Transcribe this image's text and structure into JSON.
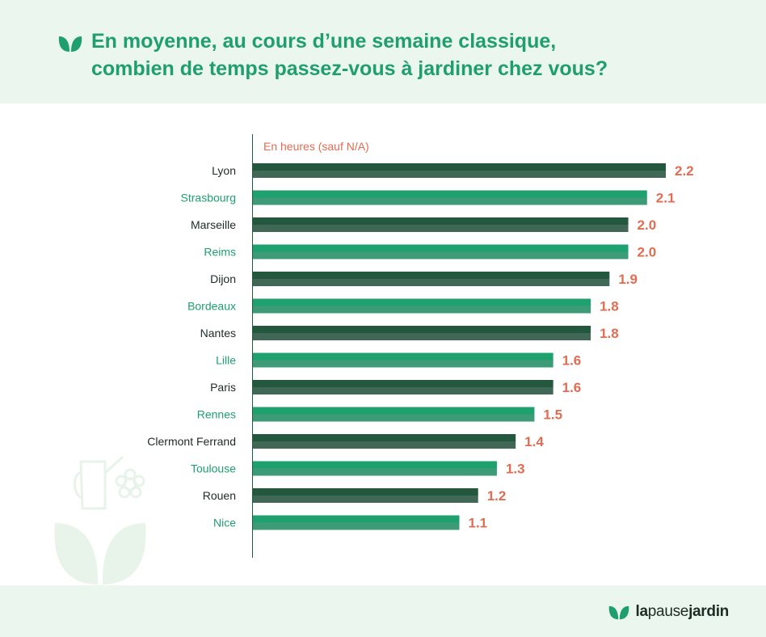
{
  "title_line1": "En moyenne, au cours d’une semaine classique,",
  "title_line2": "combien de temps passez-vous à jardiner chez vous?",
  "brand": {
    "part1": "la",
    "part2": "pause",
    "part3": "jardin"
  },
  "icons": {
    "title": "leaf-icon",
    "logo": "leaf-logo-icon",
    "decoration": "garden-decoration-icon"
  },
  "colors": {
    "dark_green": "#23583f",
    "light_green": "#1fa06f",
    "value_label": "#e06d53",
    "title": "#1f9e6f"
  },
  "chart_data": {
    "type": "bar",
    "orientation": "horizontal",
    "subtitle": "En heures (sauf N/A)",
    "categories": [
      "Lyon",
      "Strasbourg",
      "Marseille",
      "Reims",
      "Dijon",
      "Bordeaux",
      "Nantes",
      "Lille",
      "Paris",
      "Rennes",
      "Clermont Ferrand",
      "Toulouse",
      "Rouen",
      "Nice"
    ],
    "values": [
      2.2,
      2.1,
      2.0,
      2.0,
      1.9,
      1.8,
      1.8,
      1.6,
      1.6,
      1.5,
      1.4,
      1.3,
      1.2,
      1.1
    ],
    "value_labels": [
      "2.2",
      "2.1",
      "2.0",
      "2.0",
      "1.9",
      "1.8",
      "1.8",
      "1.6",
      "1.6",
      "1.5",
      "1.4",
      "1.3",
      "1.2",
      "1.1"
    ],
    "xlim": [
      0,
      2.2
    ],
    "grid": false,
    "legend": false
  }
}
